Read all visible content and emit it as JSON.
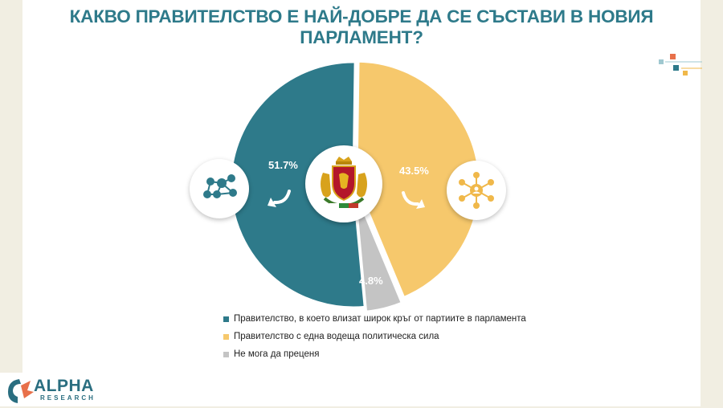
{
  "title_lines": [
    "КАКВО ПРАВИТЕЛСТВО Е НАЙ-ДОБРЕ ДА СЕ СЪСТАВИ В НОВИЯ",
    "ПАРЛАМЕНТ?"
  ],
  "logo": {
    "word": "ALPHA",
    "sub": "RESEARCH"
  },
  "chart_data": {
    "type": "pie",
    "title": "КАКВО ПРАВИТЕЛСТВО Е НАЙ-ДОБРЕ ДА СЕ СЪСТАВИ В НОВИЯ ПАРЛАМЕНТ?",
    "labels": [
      "Правителство, в което влизат широк кръг от партиите в парламента",
      "Правителство с една водеща политическа сила",
      "Не мога да преценя"
    ],
    "values": [
      51.7,
      43.5,
      4.8
    ],
    "display_labels": [
      "51.7%",
      "43.5%",
      "4.8%"
    ],
    "colors": [
      "#2e7a8a",
      "#f6c86c",
      "#c4c4c4"
    ],
    "legend_position": "bottom",
    "icons": [
      "network-icon",
      "hub-icon",
      "coat-of-arms-icon"
    ]
  }
}
